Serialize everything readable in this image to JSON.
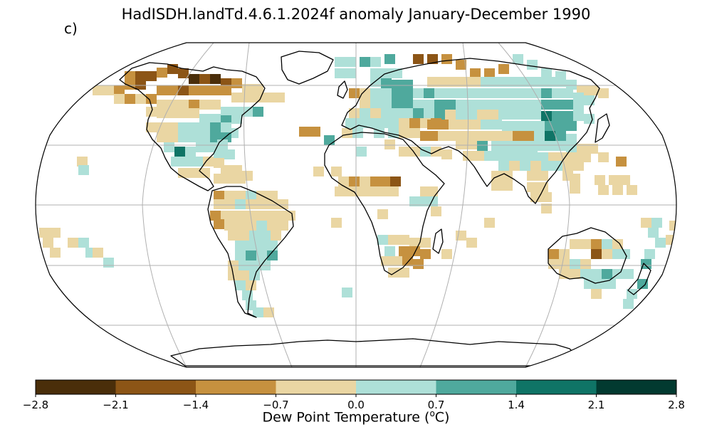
{
  "title": "HadISDH.landTd.4.6.1.2024f anomaly January-December 1990",
  "panel_label": "c)",
  "colorbar": {
    "label_prefix": "Dew Point Temperature (",
    "label_sup": "o",
    "label_suffix": "C)",
    "ticks": [
      "−2.8",
      "−2.1",
      "−1.4",
      "−0.7",
      "0.0",
      "0.7",
      "1.4",
      "2.1",
      "2.8"
    ],
    "colors": [
      "#4a2e0a",
      "#8c5516",
      "#c6913f",
      "#ead6a3",
      "#aee0d8",
      "#4fa99d",
      "#0f7466",
      "#023a30"
    ]
  }
}
